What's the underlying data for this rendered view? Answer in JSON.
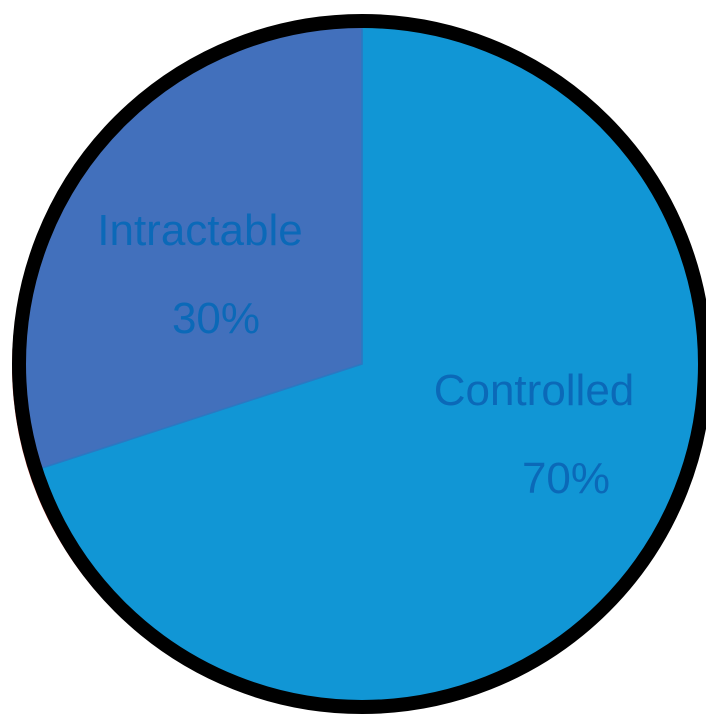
{
  "chart_data": {
    "type": "pie",
    "title": "",
    "slices": [
      {
        "label": "Controlled",
        "value": 70,
        "value_label": "70%",
        "color": "#1196D5"
      },
      {
        "label": "Intractable",
        "value": 30,
        "value_label": "30%",
        "color": "#4270BC"
      }
    ],
    "label_color": "#0B69B8",
    "border_color": "#000000",
    "start_angle_deg": 0,
    "direction": "clockwise",
    "legend": "none"
  }
}
